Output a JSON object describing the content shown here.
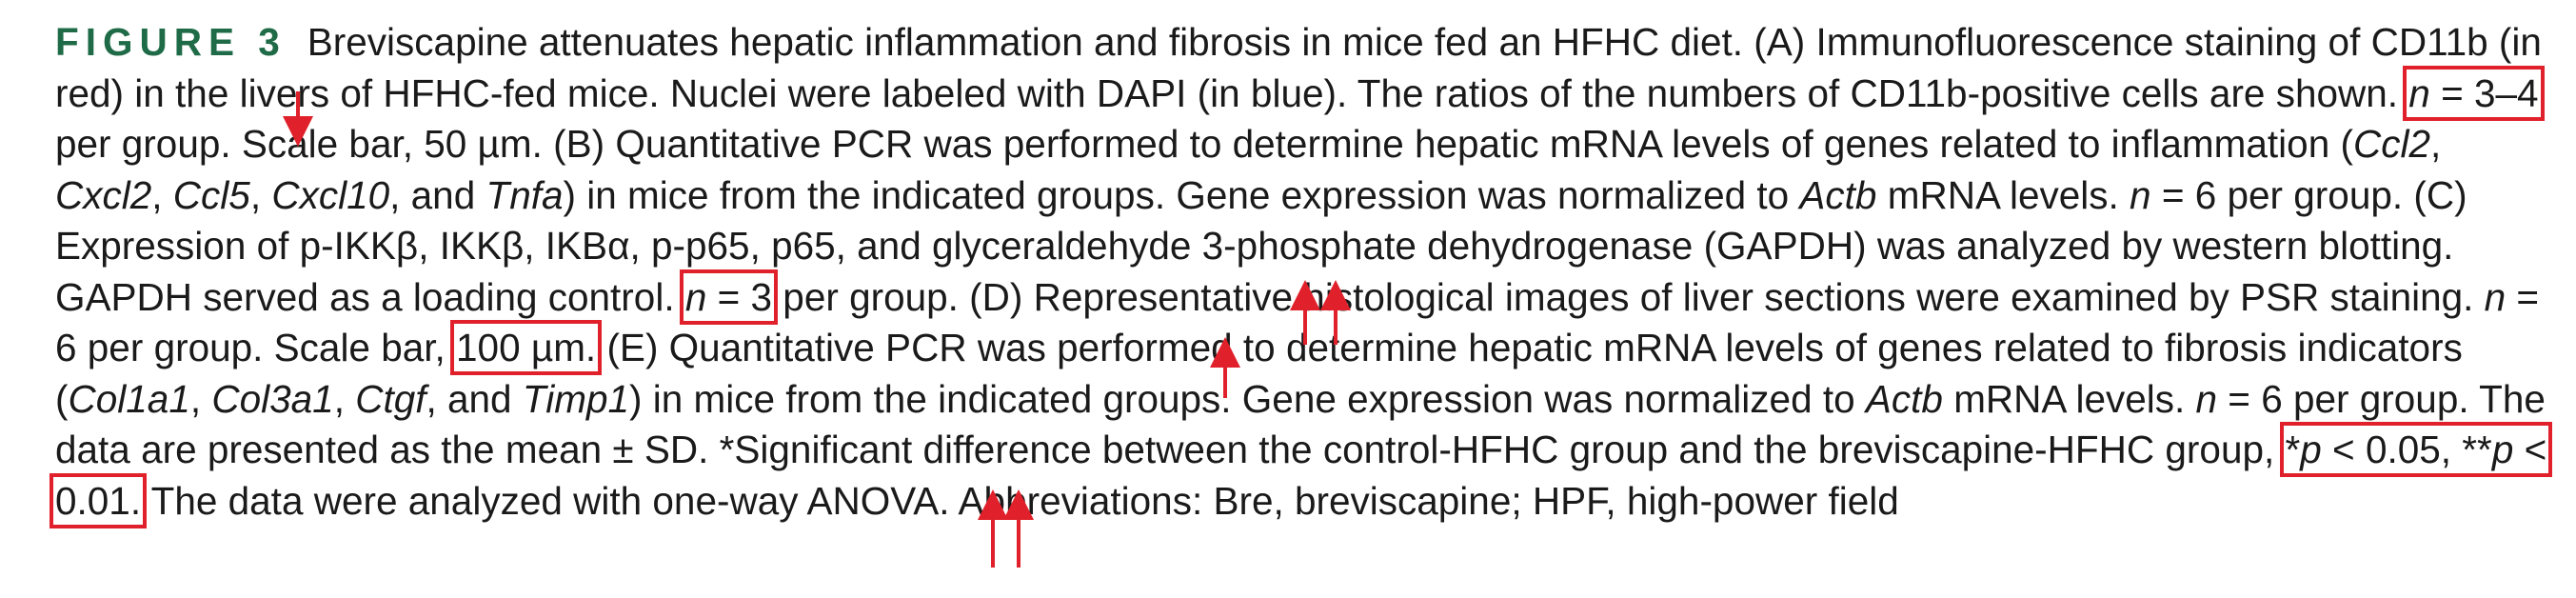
{
  "figure": {
    "label": "FIGURE 3",
    "s01": "Breviscapine attenuates hepatic inflammation and fibrosis in mice fed an HFHC diet. (A) Immunofluorescence staining of CD11b (in red) in the livers of HFHC-fed mice. Nuclei were labeled with DAPI (in blue). The ratios of the numbers of CD11b-positive cells are shown. ",
    "n_a_var": "n",
    "n_a_rest": " = 3–4",
    "s02": " per group. Scale bar, 50 µm. (B) Quantitative PCR was performed to determine hepatic mRNA levels of genes related to inflammation (",
    "g_ccl2": "Ccl2",
    "c1": ", ",
    "g_cxcl2": "Cxcl2",
    "c2": ", ",
    "g_ccl5": "Ccl5",
    "c3": ", ",
    "g_cxcl10": "Cxcl10",
    "and1": ", and ",
    "g_tnfa": "Tnfa",
    "s03": ") in mice from the indicated groups. Gene expression was normalized to ",
    "g_actb1": "Actb",
    "s04": " mRNA levels. ",
    "n_b_var": "n",
    "s05": " = 6 per group. (C) Expression of p-IKKβ, IKKβ, IKBα, p-p65, p65, and glyceraldehyde 3-phosphate dehydrogenase (GAPDH) was analyzed by western blotting. GAPDH served as a loading control. ",
    "n_c_var": "n",
    "n_c_rest": " = 3",
    "s06": " per group. (D) Representative histological images of liver sections were examined by PSR staining. ",
    "n_d_var": "n",
    "s07": " = 6 per group. Scale bar, ",
    "scale_d": "100 µm.",
    "s08": " (E) Quantitative PCR was performed to determine hepatic mRNA levels of genes related to fibrosis indicators (",
    "g_col1a1": "Col1a1",
    "c4": ", ",
    "g_col3a1": "Col3a1",
    "c5": ", ",
    "g_ctgf": "Ctgf",
    "and2": ", and ",
    "g_timp1": "Timp1",
    "s09": ") in mice from the indicated groups. Gene expression was normalized to ",
    "g_actb2": "Actb",
    "s10": " mRNA levels. ",
    "n_e_var": "n",
    "s11": " = 6 per group. The data are presented as the mean ± SD. *Significant difference between the control-HFHC group and the breviscapine-HFHC group, ",
    "p1_star": "*",
    "p1_var": "p",
    "p1_rest": " < 0.05, **",
    "p2_var": "p",
    "p2_rest": " < 0.01.",
    "s12": " The data were analyzed with one-way ANOVA. Abbreviations: Bre, breviscapine; HPF, high-power field"
  },
  "annotation": {
    "color": "#e0202a"
  }
}
